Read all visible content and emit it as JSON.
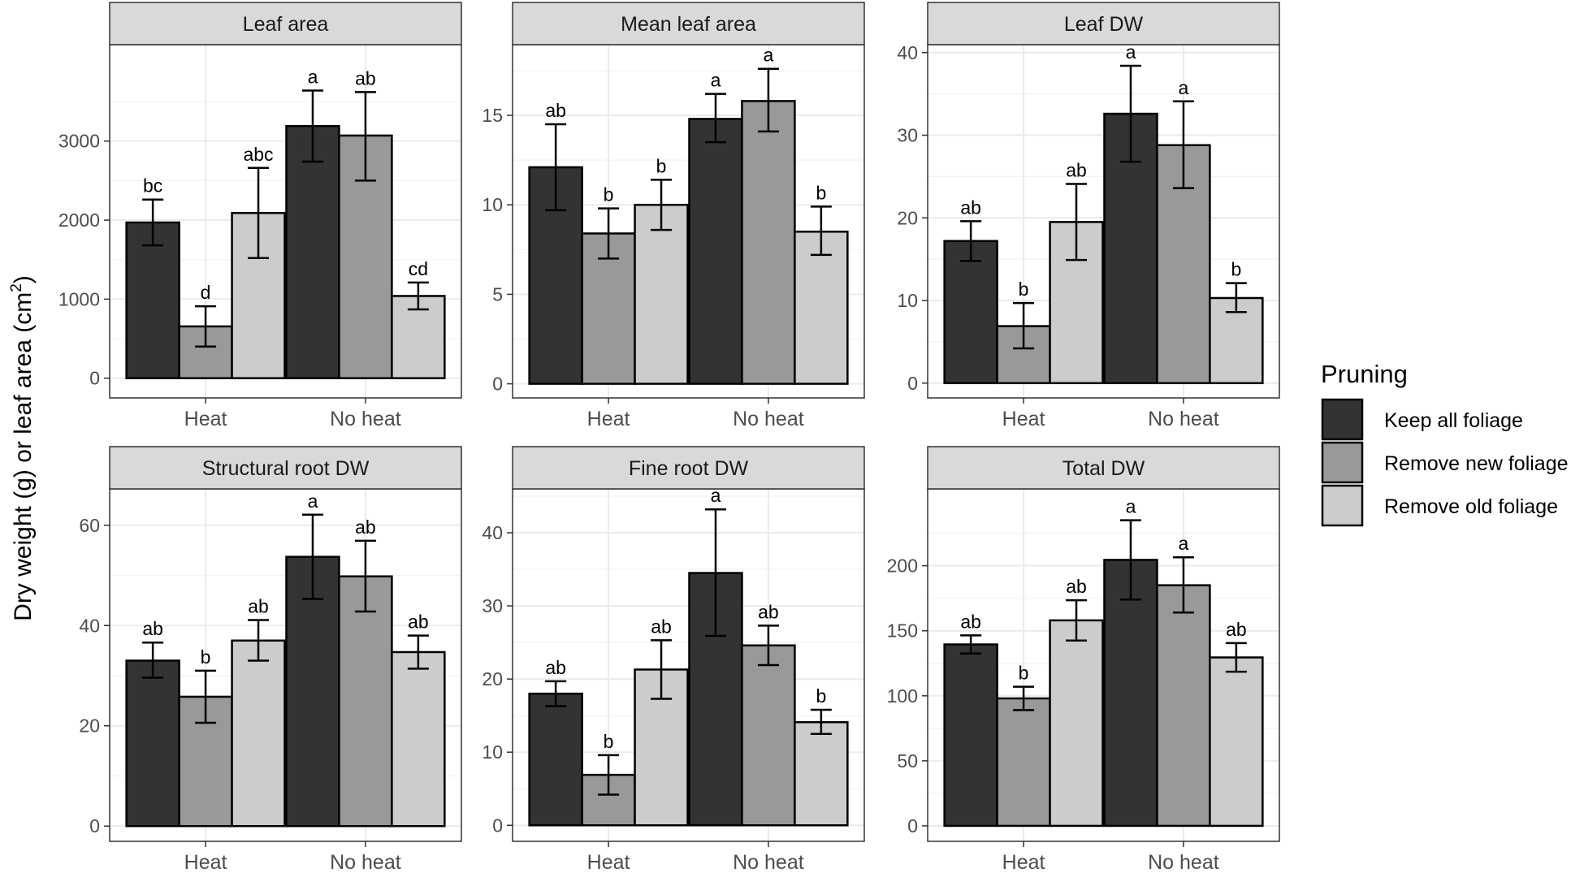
{
  "chart_data": {
    "type": "bar",
    "layout": "faceted grid (2 rows x 3 columns), grouped bars with error bars and significance letters",
    "y_title": "Dry weight (g) or leaf area (cm",
    "y_title_sup": "2",
    "y_title_end": ")",
    "categories": [
      "Heat",
      "No heat"
    ],
    "legend": {
      "title": "Pruning",
      "position": "right",
      "items": [
        {
          "name": "Keep all foliage",
          "color": "#333333"
        },
        {
          "name": "Remove new foliage",
          "color": "#999999"
        },
        {
          "name": "Remove old foliage",
          "color": "#cccccc"
        }
      ]
    },
    "panels": [
      {
        "title": "Leaf area",
        "ylim": [
          -250,
          4220
        ],
        "ticks": [
          0,
          1000,
          2000,
          3000
        ],
        "minor_ticks": [
          500,
          1500,
          2500,
          3500
        ],
        "series": [
          {
            "name": "Keep all foliage",
            "values": [
              1970,
              3190
            ],
            "lower": [
              1680,
              2740
            ],
            "upper": [
              2260,
              3640
            ],
            "letters": [
              "bc",
              "a"
            ]
          },
          {
            "name": "Remove new foliage",
            "values": [
              655,
              3070
            ],
            "lower": [
              400,
              2500
            ],
            "upper": [
              910,
              3620
            ],
            "letters": [
              "d",
              "ab"
            ]
          },
          {
            "name": "Remove old foliage",
            "values": [
              2090,
              1040
            ],
            "lower": [
              1520,
              870
            ],
            "upper": [
              2660,
              1210
            ],
            "letters": [
              "abc",
              "cd"
            ]
          }
        ]
      },
      {
        "title": "Mean leaf area",
        "ylim": [
          -0.79,
          18.95
        ],
        "ticks": [
          0,
          5,
          10,
          15
        ],
        "minor_ticks": [
          2.5,
          7.5,
          12.5,
          17.5
        ],
        "series": [
          {
            "name": "Keep all foliage",
            "values": [
              12.1,
              14.8
            ],
            "lower": [
              9.7,
              13.5
            ],
            "upper": [
              14.5,
              16.2
            ],
            "letters": [
              "ab",
              "a"
            ]
          },
          {
            "name": "Remove new foliage",
            "values": [
              8.4,
              15.8
            ],
            "lower": [
              7.0,
              14.1
            ],
            "upper": [
              9.8,
              17.6
            ],
            "letters": [
              "b",
              "a"
            ]
          },
          {
            "name": "Remove old foliage",
            "values": [
              10.0,
              8.5
            ],
            "lower": [
              8.6,
              7.2
            ],
            "upper": [
              11.4,
              9.9
            ],
            "letters": [
              "b",
              "b"
            ]
          }
        ]
      },
      {
        "title": "Leaf DW",
        "ylim": [
          -1.79,
          40.96
        ],
        "ticks": [
          0,
          10,
          20,
          30,
          40
        ],
        "minor_ticks": [
          5,
          15,
          25,
          35
        ],
        "series": [
          {
            "name": "Keep all foliage",
            "values": [
              17.2,
              32.6
            ],
            "lower": [
              14.8,
              26.8
            ],
            "upper": [
              19.6,
              38.4
            ],
            "letters": [
              "ab",
              "a"
            ]
          },
          {
            "name": "Remove new foliage",
            "values": [
              6.9,
              28.8
            ],
            "lower": [
              4.2,
              23.6
            ],
            "upper": [
              9.7,
              34.1
            ],
            "letters": [
              "b",
              "a"
            ]
          },
          {
            "name": "Remove old foliage",
            "values": [
              19.5,
              10.3
            ],
            "lower": [
              14.9,
              8.6
            ],
            "upper": [
              24.1,
              12.1
            ],
            "letters": [
              "ab",
              "b"
            ]
          }
        ]
      },
      {
        "title": "Structural root DW",
        "ylim": [
          -3.04,
          67.25
        ],
        "ticks": [
          0,
          20,
          40,
          60
        ],
        "minor_ticks": [
          10,
          30,
          50
        ],
        "series": [
          {
            "name": "Keep all foliage",
            "values": [
              33.0,
              53.7
            ],
            "lower": [
              29.6,
              45.3
            ],
            "upper": [
              36.6,
              62.1
            ],
            "letters": [
              "ab",
              "a"
            ]
          },
          {
            "name": "Remove new foliage",
            "values": [
              25.8,
              49.8
            ],
            "lower": [
              20.6,
              42.8
            ],
            "upper": [
              31.0,
              56.9
            ],
            "letters": [
              "b",
              "ab"
            ]
          },
          {
            "name": "Remove old foliage",
            "values": [
              37.0,
              34.7
            ],
            "lower": [
              33.0,
              31.4
            ],
            "upper": [
              41.1,
              38.0
            ],
            "letters": [
              "ab",
              "ab"
            ]
          }
        ]
      },
      {
        "title": "Fine root DW",
        "ylim": [
          -2.19,
          46.0
        ],
        "ticks": [
          0,
          10,
          20,
          30,
          40
        ],
        "minor_ticks": [
          5,
          15,
          25,
          35,
          45
        ],
        "series": [
          {
            "name": "Keep all foliage",
            "values": [
              18.0,
              34.5
            ],
            "lower": [
              16.3,
              25.9
            ],
            "upper": [
              19.7,
              43.2
            ],
            "letters": [
              "ab",
              "a"
            ]
          },
          {
            "name": "Remove new foliage",
            "values": [
              6.9,
              24.6
            ],
            "lower": [
              4.2,
              21.9
            ],
            "upper": [
              9.6,
              27.3
            ],
            "letters": [
              "b",
              "ab"
            ]
          },
          {
            "name": "Remove old foliage",
            "values": [
              21.3,
              14.1
            ],
            "lower": [
              17.3,
              12.5
            ],
            "upper": [
              25.3,
              15.8
            ],
            "letters": [
              "ab",
              "b"
            ]
          }
        ]
      },
      {
        "title": "Total DW",
        "ylim": [
          -11.9,
          259.1
        ],
        "ticks": [
          0,
          50,
          100,
          150,
          200
        ],
        "minor_ticks": [
          25,
          75,
          125,
          175,
          225
        ],
        "series": [
          {
            "name": "Keep all foliage",
            "values": [
              139.5,
              204.5
            ],
            "lower": [
              132.5,
              174.0
            ],
            "upper": [
              146.5,
              235.0
            ],
            "letters": [
              "ab",
              "a"
            ]
          },
          {
            "name": "Remove new foliage",
            "values": [
              98.0,
              185.0
            ],
            "lower": [
              89.0,
              164.0
            ],
            "upper": [
              107.0,
              206.5
            ],
            "letters": [
              "b",
              "a"
            ]
          },
          {
            "name": "Remove old foliage",
            "values": [
              158.0,
              129.5
            ],
            "lower": [
              142.5,
              118.5
            ],
            "upper": [
              173.5,
              140.5
            ],
            "letters": [
              "ab",
              "ab"
            ]
          }
        ]
      }
    ]
  }
}
